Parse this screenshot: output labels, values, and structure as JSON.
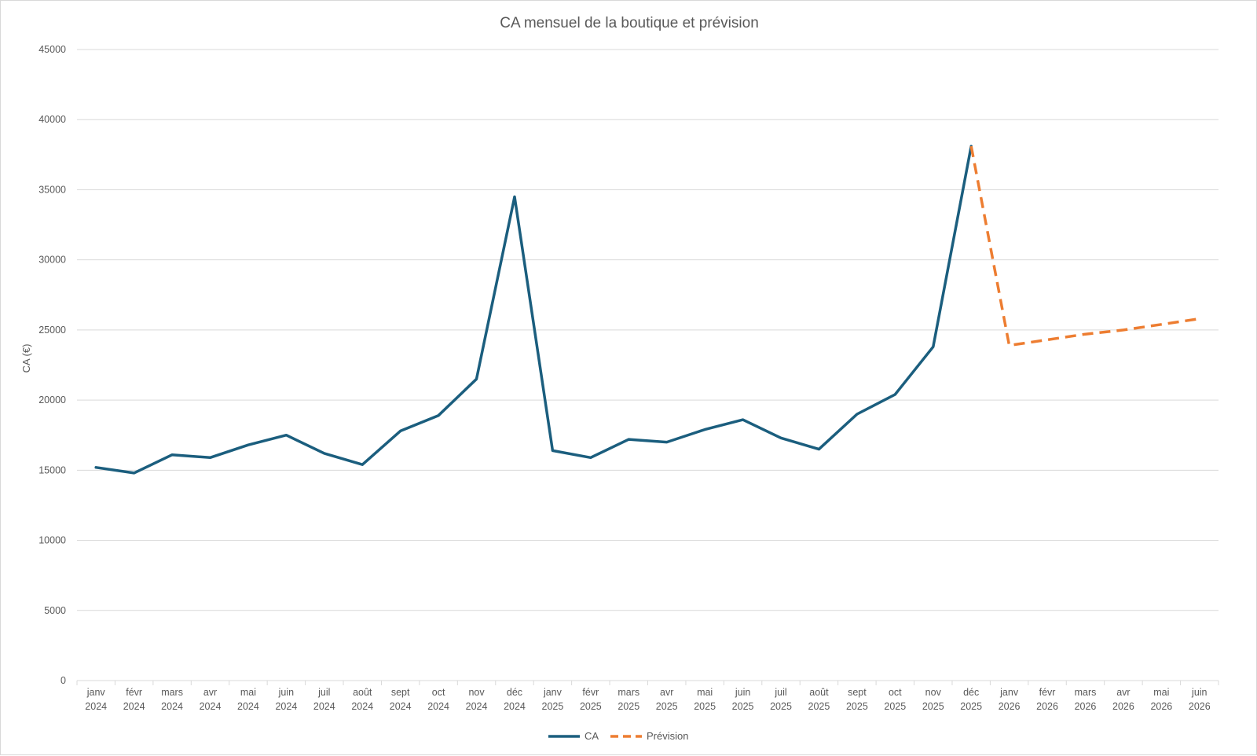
{
  "chart_data": {
    "type": "line",
    "title": "CA mensuel de la boutique et prévision",
    "xlabel": "",
    "ylabel": "CA (€)",
    "ylim": [
      0,
      45000
    ],
    "yticks": [
      0,
      5000,
      10000,
      15000,
      20000,
      25000,
      30000,
      35000,
      40000,
      45000
    ],
    "grid": "horizontal",
    "legend_position": "bottom",
    "categories": [
      [
        "janv",
        "2024"
      ],
      [
        "févr",
        "2024"
      ],
      [
        "mars",
        "2024"
      ],
      [
        "avr",
        "2024"
      ],
      [
        "mai",
        "2024"
      ],
      [
        "juin",
        "2024"
      ],
      [
        "juil",
        "2024"
      ],
      [
        "août",
        "2024"
      ],
      [
        "sept",
        "2024"
      ],
      [
        "oct",
        "2024"
      ],
      [
        "nov",
        "2024"
      ],
      [
        "déc",
        "2024"
      ],
      [
        "janv",
        "2025"
      ],
      [
        "févr",
        "2025"
      ],
      [
        "mars",
        "2025"
      ],
      [
        "avr",
        "2025"
      ],
      [
        "mai",
        "2025"
      ],
      [
        "juin",
        "2025"
      ],
      [
        "juil",
        "2025"
      ],
      [
        "août",
        "2025"
      ],
      [
        "sept",
        "2025"
      ],
      [
        "oct",
        "2025"
      ],
      [
        "nov",
        "2025"
      ],
      [
        "déc",
        "2025"
      ],
      [
        "janv",
        "2026"
      ],
      [
        "févr",
        "2026"
      ],
      [
        "mars",
        "2026"
      ],
      [
        "avr",
        "2026"
      ],
      [
        "mai",
        "2026"
      ],
      [
        "juin",
        "2026"
      ]
    ],
    "series": [
      {
        "name": "CA",
        "color": "#1b5e7e",
        "dash": "solid",
        "values": [
          15200,
          14800,
          16100,
          15900,
          16800,
          17500,
          16200,
          15400,
          17800,
          18900,
          21500,
          34500,
          16400,
          15900,
          17200,
          17000,
          17900,
          18600,
          17300,
          16500,
          19000,
          20400,
          23800,
          38100,
          null,
          null,
          null,
          null,
          null,
          null
        ]
      },
      {
        "name": "Prévision",
        "color": "#ed7d31",
        "dash": "dashed",
        "values": [
          null,
          null,
          null,
          null,
          null,
          null,
          null,
          null,
          null,
          null,
          null,
          null,
          null,
          null,
          null,
          null,
          null,
          null,
          null,
          null,
          null,
          null,
          null,
          38100,
          23900,
          24300,
          24700,
          25000,
          25400,
          25800
        ]
      }
    ]
  }
}
